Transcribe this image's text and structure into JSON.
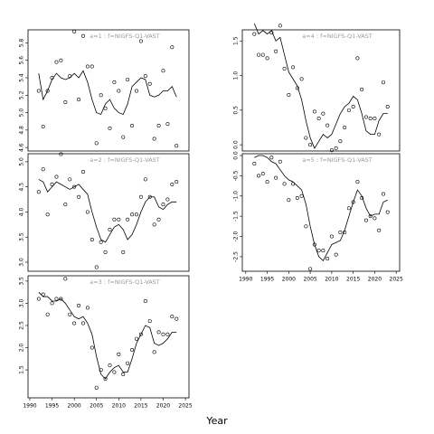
{
  "xlabel": "Year",
  "chart_data": [
    {
      "type": "line",
      "title": "a=1 : f=NIGFS-Q1-VAST",
      "x": [
        1992,
        1993,
        1994,
        1995,
        1996,
        1997,
        1998,
        1999,
        2000,
        2001,
        2002,
        2003,
        2004,
        2005,
        2006,
        2007,
        2008,
        2009,
        2010,
        2011,
        2012,
        2013,
        2014,
        2015,
        2016,
        2017,
        2018,
        2019,
        2020,
        2021,
        2022,
        2023
      ],
      "series": [
        {
          "style": "line",
          "color": "#000000",
          "values": [
            5.45,
            5.15,
            5.25,
            5.38,
            5.45,
            5.4,
            5.38,
            5.4,
            5.45,
            5.4,
            5.48,
            5.35,
            5.15,
            5.0,
            4.98,
            5.1,
            5.15,
            5.05,
            5.0,
            4.98,
            5.1,
            5.3,
            5.35,
            5.4,
            5.38,
            5.2,
            5.18,
            5.2,
            5.25,
            5.25,
            5.3,
            5.18
          ]
        },
        {
          "style": "points",
          "color": "#000000",
          "values": [
            5.25,
            4.84,
            5.25,
            5.4,
            5.58,
            5.6,
            5.12,
            5.42,
            5.93,
            5.15,
            5.88,
            5.53,
            5.53,
            4.65,
            5.2,
            5.05,
            4.82,
            5.35,
            5.25,
            4.72,
            5.38,
            4.85,
            5.25,
            5.82,
            5.42,
            5.33,
            4.7,
            4.85,
            5.48,
            4.87,
            5.75,
            4.62
          ]
        }
      ],
      "xlim": [
        1989.6,
        2025.8
      ],
      "ylim": [
        4.56,
        5.95
      ],
      "yticks": [
        4.6,
        4.8,
        {
          "value": 5,
          "label": "5.0"
        },
        5.2,
        5.4,
        5.6,
        5.8
      ]
    },
    {
      "type": "line",
      "title": "a=2 : f=NIGFS-Q1-VAST",
      "x": [
        1992,
        1993,
        1994,
        1995,
        1996,
        1997,
        1998,
        1999,
        2000,
        2001,
        2002,
        2003,
        2004,
        2005,
        2006,
        2007,
        2008,
        2009,
        2010,
        2011,
        2012,
        2013,
        2014,
        2015,
        2016,
        2017,
        2018,
        2019,
        2020,
        2021,
        2022,
        2023
      ],
      "series": [
        {
          "style": "line",
          "color": "#000000",
          "values": [
            4.65,
            4.6,
            4.4,
            4.5,
            4.6,
            4.55,
            4.5,
            4.45,
            4.5,
            4.55,
            4.45,
            4.35,
            4.0,
            3.7,
            3.45,
            3.4,
            3.55,
            3.7,
            3.75,
            3.65,
            3.45,
            3.55,
            3.75,
            4.0,
            4.2,
            4.3,
            4.3,
            4.1,
            4.05,
            4.15,
            4.2,
            4.2
          ]
        },
        {
          "style": "points",
          "color": "#000000",
          "values": [
            4.4,
            4.85,
            3.95,
            4.55,
            4.7,
            5.15,
            4.15,
            4.65,
            4.5,
            4.3,
            4.8,
            4.0,
            3.45,
            2.9,
            3.4,
            3.2,
            3.65,
            3.85,
            3.85,
            3.2,
            3.85,
            3.95,
            3.95,
            4.3,
            4.65,
            4.3,
            3.75,
            3.85,
            4.15,
            4.25,
            4.55,
            4.6
          ]
        }
      ],
      "xlim": [
        1989.6,
        2025.8
      ],
      "ylim": [
        2.82,
        5.16
      ],
      "yticks": [
        {
          "value": 3,
          "label": "3.0"
        },
        3.5,
        {
          "value": 4,
          "label": "4.0"
        },
        4.5,
        {
          "value": 5,
          "label": "5.0"
        }
      ]
    },
    {
      "type": "line",
      "title": "a=3 : f=NIGFS-Q1-VAST",
      "x": [
        1992,
        1993,
        1994,
        1995,
        1996,
        1997,
        1998,
        1999,
        2000,
        2001,
        2002,
        2003,
        2004,
        2005,
        2006,
        2007,
        2008,
        2009,
        2010,
        2011,
        2012,
        2013,
        2014,
        2015,
        2016,
        2017,
        2018,
        2019,
        2020,
        2021,
        2022,
        2023
      ],
      "series": [
        {
          "style": "line",
          "color": "#000000",
          "values": [
            3.25,
            3.15,
            3.15,
            3.05,
            3.05,
            3.1,
            3.0,
            2.85,
            2.7,
            2.65,
            2.7,
            2.55,
            2.3,
            1.8,
            1.4,
            1.3,
            1.45,
            1.55,
            1.6,
            1.45,
            1.45,
            1.75,
            2.1,
            2.3,
            2.5,
            2.45,
            2.1,
            2.05,
            2.1,
            2.2,
            2.35,
            2.35
          ]
        },
        {
          "style": "points",
          "color": "#000000",
          "values": [
            3.1,
            3.2,
            2.75,
            3.0,
            3.1,
            3.1,
            3.55,
            2.75,
            2.55,
            2.95,
            2.55,
            2.9,
            2.0,
            1.1,
            1.5,
            1.3,
            1.6,
            1.45,
            1.85,
            1.4,
            1.65,
            1.95,
            2.2,
            2.3,
            3.05,
            2.6,
            1.9,
            2.35,
            2.3,
            2.3,
            2.7,
            2.65
          ]
        }
      ],
      "xlim": [
        1989.6,
        2025.8
      ],
      "ylim": [
        0.87,
        3.62
      ],
      "xticks": [
        1990,
        1995,
        2000,
        2005,
        2010,
        2015,
        2020,
        2025
      ],
      "yticks": [
        1.5,
        {
          "value": 2,
          "label": "2.0"
        },
        2.5,
        {
          "value": 3,
          "label": "3.0"
        },
        3.5
      ]
    },
    {
      "type": "line",
      "title": "a=4 : f=NIGFS-Q1-VAST",
      "x": [
        1992,
        1993,
        1994,
        1995,
        1996,
        1997,
        1998,
        1999,
        2000,
        2001,
        2002,
        2003,
        2004,
        2005,
        2006,
        2007,
        2008,
        2009,
        2010,
        2011,
        2012,
        2013,
        2014,
        2015,
        2016,
        2017,
        2018,
        2019,
        2020,
        2021,
        2022,
        2023
      ],
      "series": [
        {
          "style": "line",
          "color": "#000000",
          "values": [
            1.75,
            1.6,
            1.65,
            1.6,
            1.65,
            1.5,
            1.55,
            1.3,
            1.05,
            0.95,
            0.85,
            0.65,
            0.35,
            0.1,
            -0.05,
            0.05,
            0.15,
            0.1,
            0.15,
            0.3,
            0.45,
            0.55,
            0.6,
            0.7,
            0.65,
            0.45,
            0.2,
            0.15,
            0.15,
            0.35,
            0.45,
            0.45
          ]
        },
        {
          "style": "points",
          "color": "#000000",
          "values": [
            1.6,
            1.3,
            1.3,
            1.25,
            1.62,
            1.35,
            1.72,
            1.1,
            0.72,
            1.12,
            0.82,
            0.95,
            0.1,
            0.0,
            0.48,
            0.38,
            0.45,
            0.28,
            -0.08,
            -0.05,
            0.05,
            0.25,
            0.5,
            0.55,
            1.25,
            0.8,
            0.4,
            0.38,
            0.38,
            0.15,
            0.9,
            0.55
          ]
        }
      ],
      "xlim": [
        1989.2,
        2025.8
      ],
      "ylim": [
        -0.09,
        1.66
      ],
      "yticks": [
        {
          "value": 0,
          "label": "0.0"
        },
        0.5,
        {
          "value": 1,
          "label": "1.0"
        },
        1.5
      ]
    },
    {
      "type": "line",
      "title": "a=5 : f=NIGFS-Q1-VAST",
      "x": [
        1992,
        1993,
        1994,
        1995,
        1996,
        1997,
        1998,
        1999,
        2000,
        2001,
        2002,
        2003,
        2004,
        2005,
        2006,
        2007,
        2008,
        2009,
        2010,
        2011,
        2012,
        2013,
        2014,
        2015,
        2016,
        2017,
        2018,
        2019,
        2020,
        2021,
        2022,
        2023
      ],
      "series": [
        {
          "style": "line",
          "color": "#000000",
          "values": [
            -0.05,
            0.0,
            0.0,
            -0.05,
            -0.15,
            -0.2,
            -0.35,
            -0.5,
            -0.6,
            -0.65,
            -0.75,
            -0.85,
            -1.2,
            -1.75,
            -2.2,
            -2.5,
            -2.6,
            -2.4,
            -2.2,
            -2.15,
            -2.1,
            -1.85,
            -1.5,
            -1.15,
            -0.85,
            -1.0,
            -1.3,
            -1.5,
            -1.45,
            -1.45,
            -1.15,
            -1.1
          ]
        },
        {
          "style": "points",
          "color": "#000000",
          "values": [
            -0.2,
            -0.5,
            -0.45,
            -0.65,
            -0.05,
            -0.55,
            -0.15,
            -0.7,
            -1.1,
            -0.7,
            -1.05,
            -1.0,
            -1.75,
            -2.8,
            -2.2,
            -2.35,
            -2.35,
            -2.55,
            -2.0,
            -2.45,
            -1.9,
            -1.9,
            -1.3,
            -1.15,
            -0.65,
            -1.05,
            -1.6,
            -1.5,
            -1.55,
            -1.85,
            -0.95,
            -1.4
          ]
        }
      ],
      "xlim": [
        1989.2,
        2025.8
      ],
      "ylim": [
        -2.86,
        0.045
      ],
      "xticks": [
        1990,
        1995,
        2000,
        2005,
        2010,
        2015,
        2020,
        2025
      ],
      "yticks": [
        {
          "value": 0,
          "label": "0.0"
        },
        -0.5,
        {
          "value": -1,
          "label": "-1.0"
        },
        -1.5,
        {
          "value": -2,
          "label": "-2.0"
        },
        -2.5
      ]
    }
  ]
}
